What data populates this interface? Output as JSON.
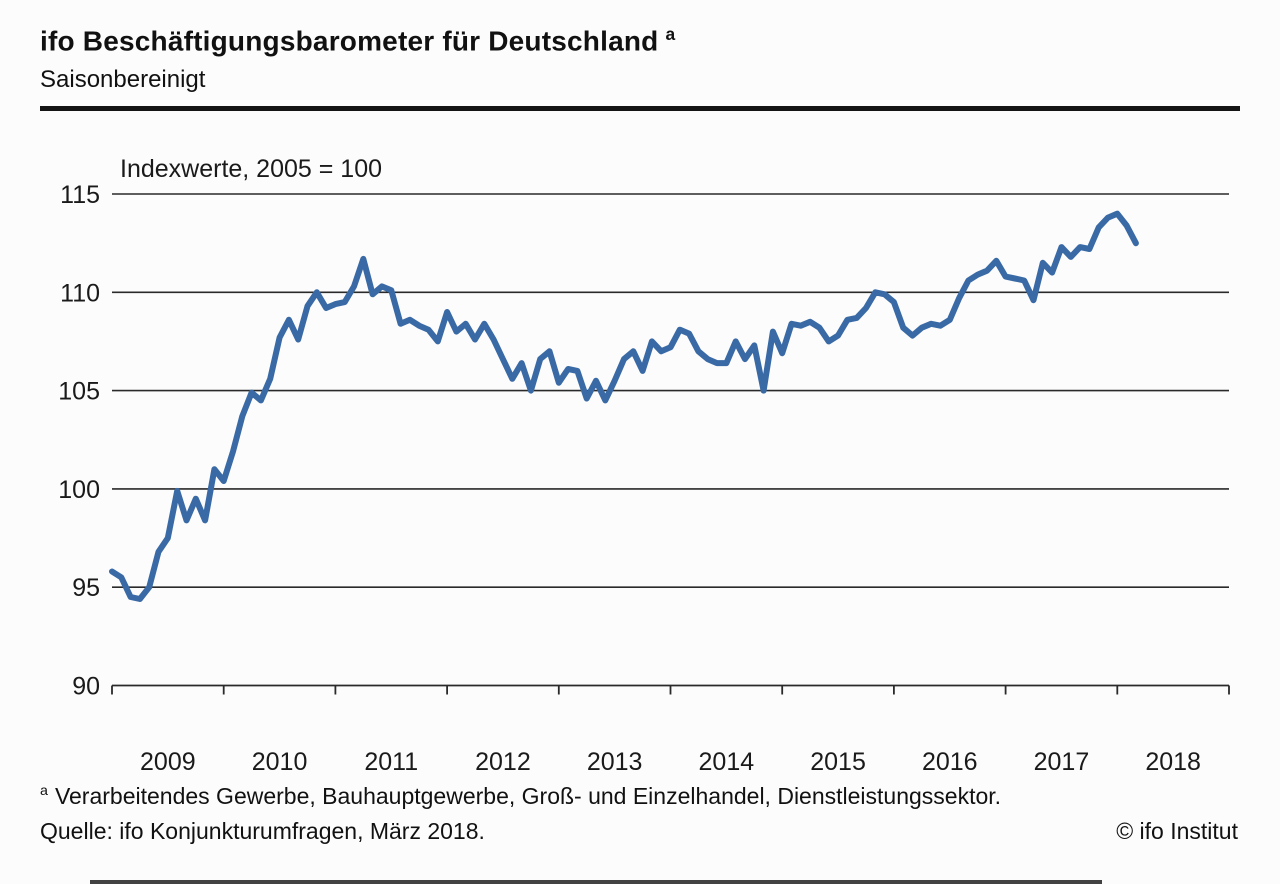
{
  "header": {
    "title": "ifo Beschäftigungsbarometer für Deutschland",
    "title_footnote_marker": "a",
    "subtitle": "Saisonbereinigt"
  },
  "chart_data": {
    "type": "line",
    "title": "ifo Beschäftigungsbarometer für Deutschland",
    "subtitle": "Saisonbereinigt",
    "annotation": "Indexwerte, 2005 = 100",
    "x_start": "2009-01",
    "x_end": "2018-03",
    "x_tick_years": [
      "2009",
      "2010",
      "2011",
      "2012",
      "2013",
      "2014",
      "2015",
      "2016",
      "2017",
      "2018"
    ],
    "ylim": [
      90,
      115
    ],
    "y_ticks": [
      115,
      110,
      105,
      100,
      95,
      90
    ],
    "gridline_values": [
      115,
      110,
      105,
      100,
      95
    ],
    "grid": true,
    "legend": false,
    "line_color": "#3a6aa5",
    "axis_color": "#2a2a2a",
    "series": [
      {
        "name": "ifo Beschäftigungsbarometer (saisonbereinigt)",
        "frequency": "monthly",
        "start": "2009-01",
        "values": [
          95.8,
          95.5,
          94.5,
          94.4,
          95.0,
          96.8,
          97.5,
          99.9,
          98.4,
          99.5,
          98.4,
          101.0,
          100.4,
          101.9,
          103.7,
          104.9,
          104.5,
          105.6,
          107.7,
          108.6,
          107.6,
          109.3,
          110.0,
          109.2,
          109.4,
          109.5,
          110.3,
          111.7,
          109.9,
          110.3,
          110.1,
          108.4,
          108.6,
          108.3,
          108.1,
          107.5,
          109.0,
          108.0,
          108.4,
          107.6,
          108.4,
          107.6,
          106.6,
          105.6,
          106.4,
          105.0,
          106.6,
          107.0,
          105.4,
          106.1,
          106.0,
          104.6,
          105.5,
          104.5,
          105.5,
          106.6,
          107.0,
          106.0,
          107.5,
          107.0,
          107.2,
          108.1,
          107.9,
          107.0,
          106.6,
          106.4,
          106.4,
          107.5,
          106.6,
          107.3,
          105.0,
          108.0,
          106.9,
          108.4,
          108.3,
          108.5,
          108.2,
          107.5,
          107.8,
          108.6,
          108.7,
          109.2,
          110.0,
          109.9,
          109.5,
          108.2,
          107.8,
          108.2,
          108.4,
          108.3,
          108.6,
          109.7,
          110.6,
          110.9,
          111.1,
          111.6,
          110.8,
          110.7,
          110.6,
          109.6,
          111.5,
          111.0,
          112.3,
          111.8,
          112.3,
          112.2,
          113.3,
          113.8,
          114.0,
          113.4,
          112.5
        ]
      }
    ]
  },
  "footer": {
    "footnote_marker": "a",
    "footnote_text": "Verarbeitendes Gewerbe, Bauhauptgewerbe, Groß- und Einzelhandel, Dienstleistungssektor.",
    "source": "Quelle: ifo Konjunkturumfragen, März 2018.",
    "copyright": "© ifo Institut"
  }
}
